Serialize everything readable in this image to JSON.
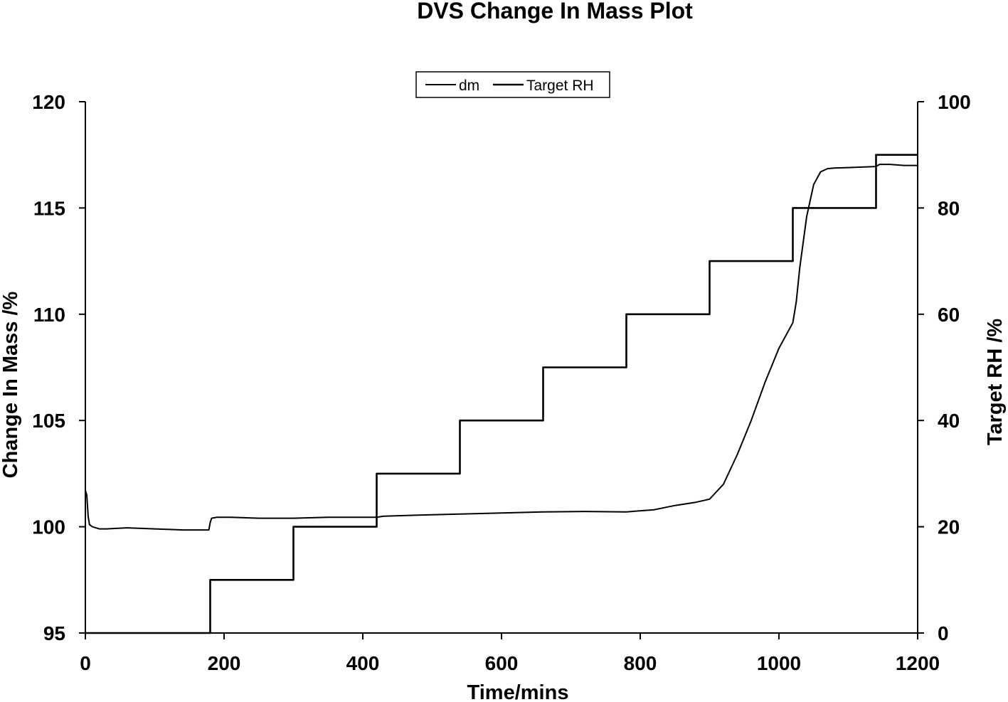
{
  "chart_data": {
    "type": "line",
    "title": "DVS Change In Mass Plot",
    "xlabel": "Time/mins",
    "ylabel": "Change In Mass /%",
    "y2label": "Target RH /%",
    "xlim": [
      0,
      1200
    ],
    "ylim": [
      95,
      120
    ],
    "y2lim": [
      0,
      100
    ],
    "xticks": [
      "0",
      "200",
      "400",
      "600",
      "800",
      "1000",
      "1200"
    ],
    "yticks": [
      "95",
      "100",
      "105",
      "110",
      "115",
      "120"
    ],
    "y2ticks": [
      "0",
      "20",
      "40",
      "60",
      "80",
      "100"
    ],
    "grid": false,
    "legend": {
      "position": "top-center",
      "entries": [
        "dm",
        "Target RH"
      ]
    },
    "series": [
      {
        "name": "dm",
        "axis": "left",
        "x": [
          0,
          2,
          4,
          6,
          10,
          20,
          30,
          60,
          100,
          140,
          178,
          180,
          182,
          190,
          210,
          250,
          300,
          350,
          400,
          420,
          430,
          480,
          540,
          600,
          660,
          720,
          780,
          820,
          850,
          880,
          900,
          920,
          940,
          960,
          980,
          1000,
          1020,
          1025,
          1030,
          1040,
          1050,
          1060,
          1070,
          1080,
          1100,
          1140,
          1145,
          1160,
          1180,
          1200
        ],
        "y": [
          101.7,
          101.5,
          100.5,
          100.1,
          100.0,
          99.9,
          99.9,
          99.95,
          99.9,
          99.85,
          99.85,
          100.2,
          100.4,
          100.45,
          100.45,
          100.4,
          100.4,
          100.45,
          100.45,
          100.45,
          100.5,
          100.55,
          100.6,
          100.65,
          100.7,
          100.72,
          100.7,
          100.8,
          101.0,
          101.15,
          101.3,
          102.0,
          103.4,
          105.0,
          106.8,
          108.4,
          109.6,
          110.6,
          112.2,
          114.6,
          116.1,
          116.7,
          116.85,
          116.88,
          116.9,
          116.95,
          117.05,
          117.05,
          117.0,
          117.0
        ]
      },
      {
        "name": "Target RH",
        "axis": "right",
        "step": true,
        "x": [
          0,
          180,
          300,
          420,
          540,
          660,
          780,
          900,
          1020,
          1140,
          1200
        ],
        "y": [
          0,
          10,
          20,
          30,
          40,
          50,
          60,
          70,
          80,
          90,
          90
        ]
      }
    ]
  }
}
